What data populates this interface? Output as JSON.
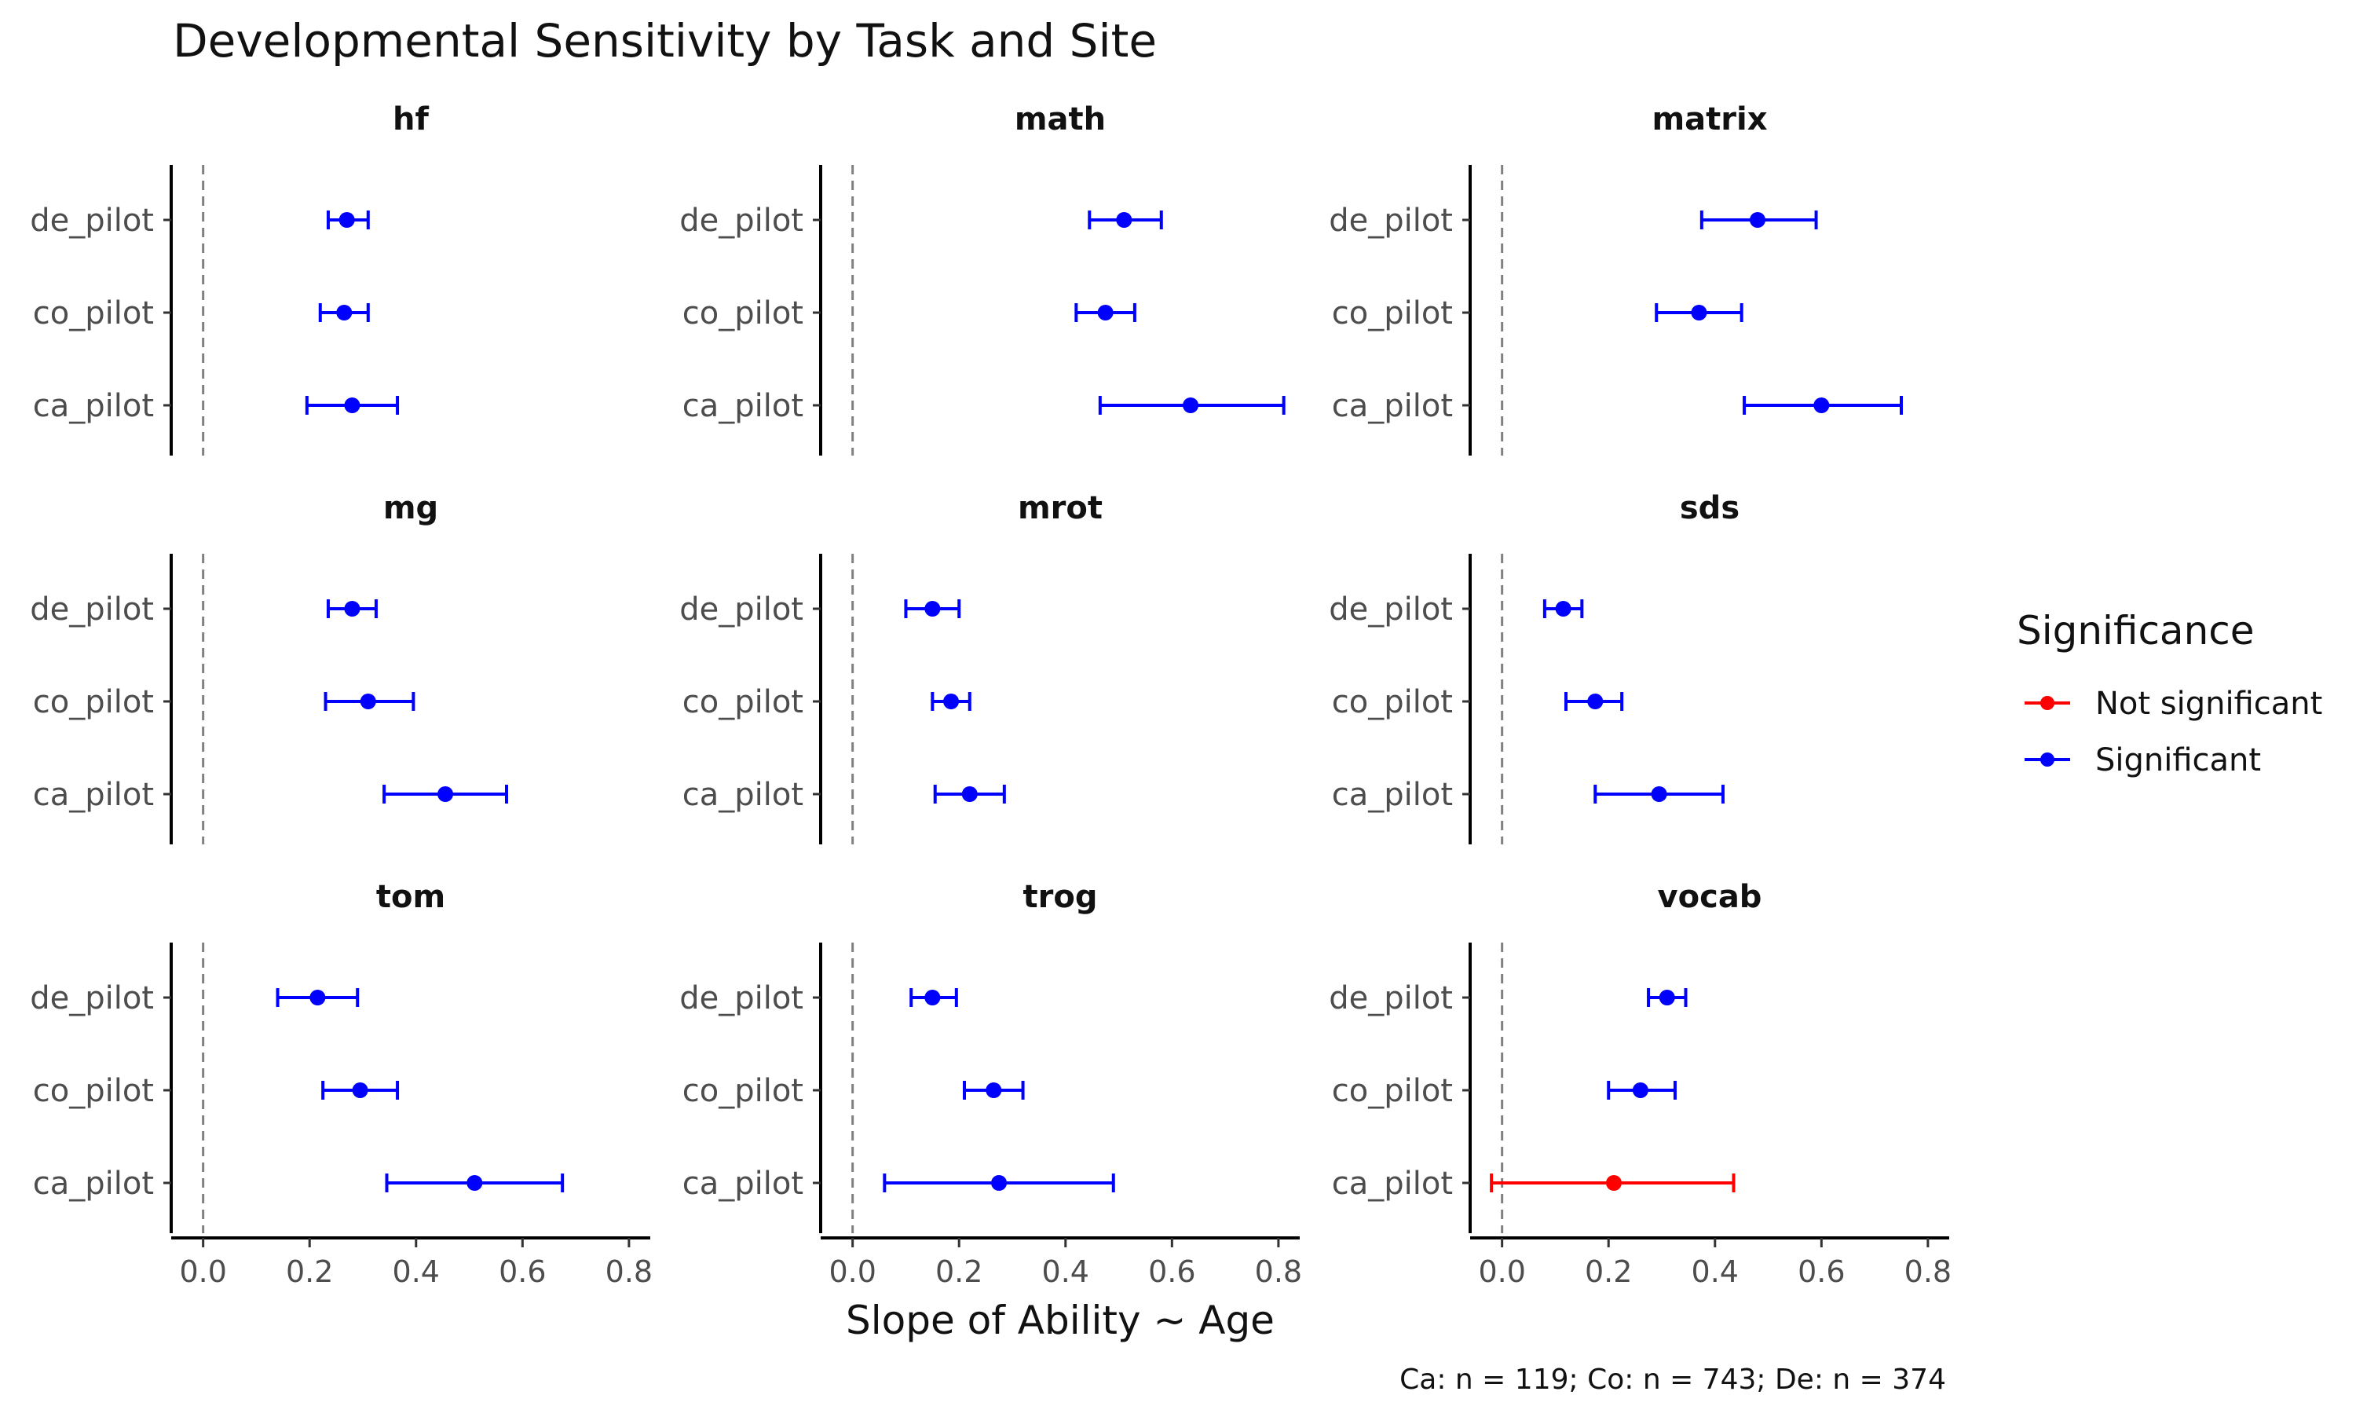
{
  "chart_data": {
    "type": "scatter",
    "title": "Developmental Sensitivity by Task and Site",
    "xlabel": "Slope of Ability ~ Age",
    "xlim": [
      -0.06,
      0.84
    ],
    "xticks": [
      0.0,
      0.2,
      0.4,
      0.6,
      0.8
    ],
    "xtick_labels": [
      "0.0",
      "0.2",
      "0.4",
      "0.6",
      "0.8"
    ],
    "reference_line": 0.0,
    "sites": [
      "de_pilot",
      "co_pilot",
      "ca_pilot"
    ],
    "caption": "Ca: n = 119; Co: n = 743; De: n = 374",
    "grid": false,
    "legend": {
      "title": "Significance",
      "position": "right",
      "entries": [
        {
          "label": "Not significant",
          "color": "#ff0000"
        },
        {
          "label": "Significant",
          "color": "#0000ff"
        }
      ]
    },
    "panels": [
      {
        "task": "hf",
        "points": [
          {
            "site": "de_pilot",
            "estimate": 0.27,
            "low": 0.235,
            "high": 0.31,
            "significant": true
          },
          {
            "site": "co_pilot",
            "estimate": 0.265,
            "low": 0.22,
            "high": 0.31,
            "significant": true
          },
          {
            "site": "ca_pilot",
            "estimate": 0.28,
            "low": 0.195,
            "high": 0.365,
            "significant": true
          }
        ]
      },
      {
        "task": "math",
        "points": [
          {
            "site": "de_pilot",
            "estimate": 0.51,
            "low": 0.445,
            "high": 0.58,
            "significant": true
          },
          {
            "site": "co_pilot",
            "estimate": 0.475,
            "low": 0.42,
            "high": 0.53,
            "significant": true
          },
          {
            "site": "ca_pilot",
            "estimate": 0.635,
            "low": 0.465,
            "high": 0.81,
            "significant": true
          }
        ]
      },
      {
        "task": "matrix",
        "points": [
          {
            "site": "de_pilot",
            "estimate": 0.48,
            "low": 0.375,
            "high": 0.59,
            "significant": true
          },
          {
            "site": "co_pilot",
            "estimate": 0.37,
            "low": 0.29,
            "high": 0.45,
            "significant": true
          },
          {
            "site": "ca_pilot",
            "estimate": 0.6,
            "low": 0.455,
            "high": 0.75,
            "significant": true
          }
        ]
      },
      {
        "task": "mg",
        "points": [
          {
            "site": "de_pilot",
            "estimate": 0.28,
            "low": 0.235,
            "high": 0.325,
            "significant": true
          },
          {
            "site": "co_pilot",
            "estimate": 0.31,
            "low": 0.23,
            "high": 0.395,
            "significant": true
          },
          {
            "site": "ca_pilot",
            "estimate": 0.455,
            "low": 0.34,
            "high": 0.57,
            "significant": true
          }
        ]
      },
      {
        "task": "mrot",
        "points": [
          {
            "site": "de_pilot",
            "estimate": 0.15,
            "low": 0.1,
            "high": 0.2,
            "significant": true
          },
          {
            "site": "co_pilot",
            "estimate": 0.185,
            "low": 0.15,
            "high": 0.22,
            "significant": true
          },
          {
            "site": "ca_pilot",
            "estimate": 0.22,
            "low": 0.155,
            "high": 0.285,
            "significant": true
          }
        ]
      },
      {
        "task": "sds",
        "points": [
          {
            "site": "de_pilot",
            "estimate": 0.115,
            "low": 0.08,
            "high": 0.15,
            "significant": true
          },
          {
            "site": "co_pilot",
            "estimate": 0.175,
            "low": 0.12,
            "high": 0.225,
            "significant": true
          },
          {
            "site": "ca_pilot",
            "estimate": 0.295,
            "low": 0.175,
            "high": 0.415,
            "significant": true
          }
        ]
      },
      {
        "task": "tom",
        "points": [
          {
            "site": "de_pilot",
            "estimate": 0.215,
            "low": 0.14,
            "high": 0.29,
            "significant": true
          },
          {
            "site": "co_pilot",
            "estimate": 0.295,
            "low": 0.225,
            "high": 0.365,
            "significant": true
          },
          {
            "site": "ca_pilot",
            "estimate": 0.51,
            "low": 0.345,
            "high": 0.675,
            "significant": true
          }
        ]
      },
      {
        "task": "trog",
        "points": [
          {
            "site": "de_pilot",
            "estimate": 0.15,
            "low": 0.11,
            "high": 0.195,
            "significant": true
          },
          {
            "site": "co_pilot",
            "estimate": 0.265,
            "low": 0.21,
            "high": 0.32,
            "significant": true
          },
          {
            "site": "ca_pilot",
            "estimate": 0.275,
            "low": 0.06,
            "high": 0.49,
            "significant": true
          }
        ]
      },
      {
        "task": "vocab",
        "points": [
          {
            "site": "de_pilot",
            "estimate": 0.31,
            "low": 0.275,
            "high": 0.345,
            "significant": true
          },
          {
            "site": "co_pilot",
            "estimate": 0.26,
            "low": 0.2,
            "high": 0.325,
            "significant": true
          },
          {
            "site": "ca_pilot",
            "estimate": 0.21,
            "low": -0.02,
            "high": 0.435,
            "significant": false
          }
        ]
      }
    ]
  }
}
